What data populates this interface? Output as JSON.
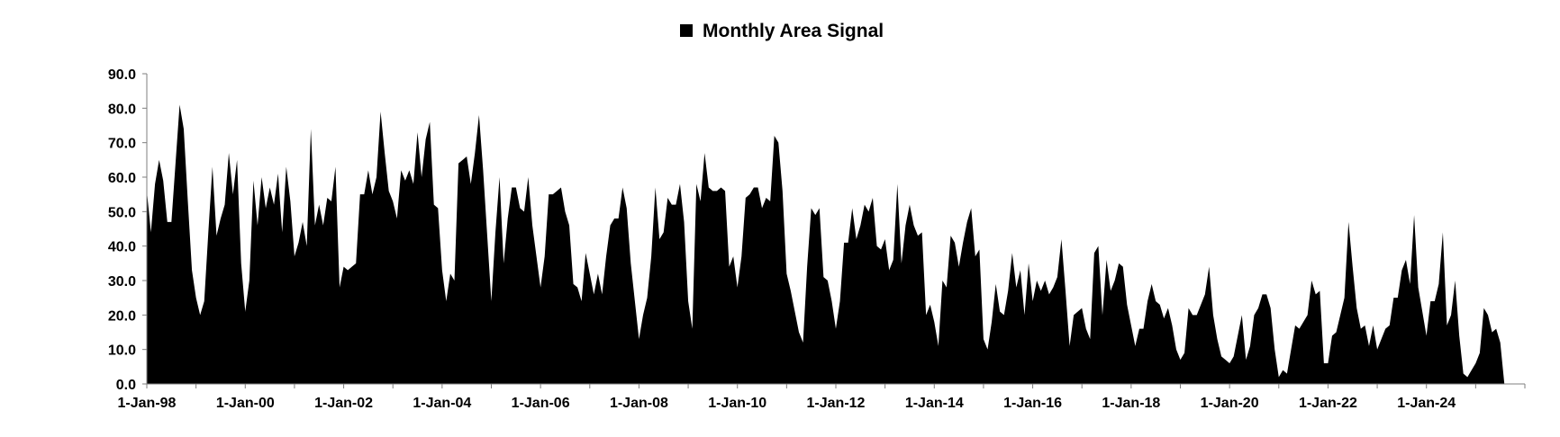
{
  "chart_data": {
    "type": "area",
    "title": "",
    "xlabel": "",
    "ylabel": "",
    "legend": {
      "position": "top-center",
      "entries": [
        "Monthly Area Signal"
      ]
    },
    "grid": false,
    "ylim": [
      0,
      90
    ],
    "xlim": [
      "1998-01-01",
      "2026-01-01"
    ],
    "y_ticks": [
      "0.0",
      "10.0",
      "20.0",
      "30.0",
      "40.0",
      "50.0",
      "60.0",
      "70.0",
      "80.0",
      "90.0"
    ],
    "x_ticks": [
      "1-Jan-98",
      "1-Jan-00",
      "1-Jan-02",
      "1-Jan-04",
      "1-Jan-06",
      "1-Jan-08",
      "1-Jan-10",
      "1-Jan-12",
      "1-Jan-14",
      "1-Jan-16",
      "1-Jan-18",
      "1-Jan-20",
      "1-Jan-22",
      "1-Jan-24"
    ],
    "series": [
      {
        "name": "Monthly Area Signal",
        "color": "#000000",
        "start": "1998-01",
        "frequency": "monthly",
        "values": [
          56,
          44,
          58,
          65,
          59,
          47,
          47,
          64,
          81,
          74,
          53,
          33,
          25,
          20,
          24,
          44,
          63,
          43,
          48,
          52,
          67,
          55,
          65,
          35,
          21,
          30,
          59,
          46,
          60,
          51,
          57,
          52,
          61,
          44,
          63,
          53,
          37,
          41,
          47,
          40,
          74,
          46,
          52,
          46,
          54,
          53,
          63,
          28,
          34,
          33,
          34,
          35,
          55,
          55,
          62,
          55,
          60,
          79,
          67,
          56,
          53,
          48,
          62,
          59,
          62,
          58,
          73,
          60,
          71,
          76,
          52,
          51,
          33,
          24,
          32,
          30,
          64,
          65,
          66,
          58,
          67,
          78,
          62,
          43,
          24,
          44,
          60,
          35,
          48,
          57,
          57,
          51,
          50,
          60,
          46,
          37,
          28,
          37,
          55,
          55,
          56,
          57,
          50,
          46,
          29,
          28,
          24,
          38,
          32,
          26,
          32,
          26,
          37,
          46,
          48,
          48,
          57,
          51,
          35,
          24,
          13,
          20,
          25,
          37,
          57,
          42,
          44,
          54,
          52,
          52,
          58,
          47,
          24,
          16,
          58,
          53,
          67,
          57,
          56,
          56,
          57,
          56,
          34,
          37,
          28,
          37,
          54,
          55,
          57,
          57,
          51,
          54,
          53,
          72,
          70,
          56,
          32,
          27,
          21,
          15,
          12,
          34,
          51,
          49,
          51,
          31,
          30,
          24,
          16,
          24,
          41,
          41,
          51,
          42,
          46,
          52,
          50,
          54,
          40,
          39,
          42,
          33,
          36,
          58,
          35,
          46,
          52,
          46,
          43,
          44,
          20,
          23,
          18,
          11,
          30,
          28,
          43,
          41,
          34,
          41,
          47,
          51,
          37,
          39,
          13,
          10,
          18,
          29,
          21,
          20,
          27,
          38,
          28,
          33,
          20,
          35,
          24,
          30,
          27,
          30,
          26,
          28,
          31,
          42,
          27,
          11,
          20,
          21,
          22,
          16,
          13,
          38,
          40,
          20,
          36,
          27,
          30,
          35,
          34,
          23,
          17,
          11,
          16,
          16,
          24,
          29,
          24,
          23,
          19,
          22,
          17,
          10,
          7,
          9,
          22,
          20,
          20,
          23,
          26,
          34,
          20,
          13,
          8,
          7,
          6,
          8,
          14,
          20,
          7,
          11,
          20,
          22,
          26,
          26,
          22,
          10,
          2,
          4,
          3,
          10,
          17,
          16,
          18,
          20,
          30,
          26,
          27,
          6,
          6,
          14,
          15,
          20,
          25,
          47,
          34,
          22,
          16,
          17,
          11,
          17,
          10,
          13,
          16,
          17,
          25,
          25,
          33,
          36,
          29,
          49,
          28,
          21,
          14,
          24,
          24,
          29,
          44,
          17,
          20,
          30,
          14,
          3,
          2,
          4,
          6,
          9,
          22,
          20,
          15,
          16,
          12,
          0
        ]
      }
    ]
  }
}
